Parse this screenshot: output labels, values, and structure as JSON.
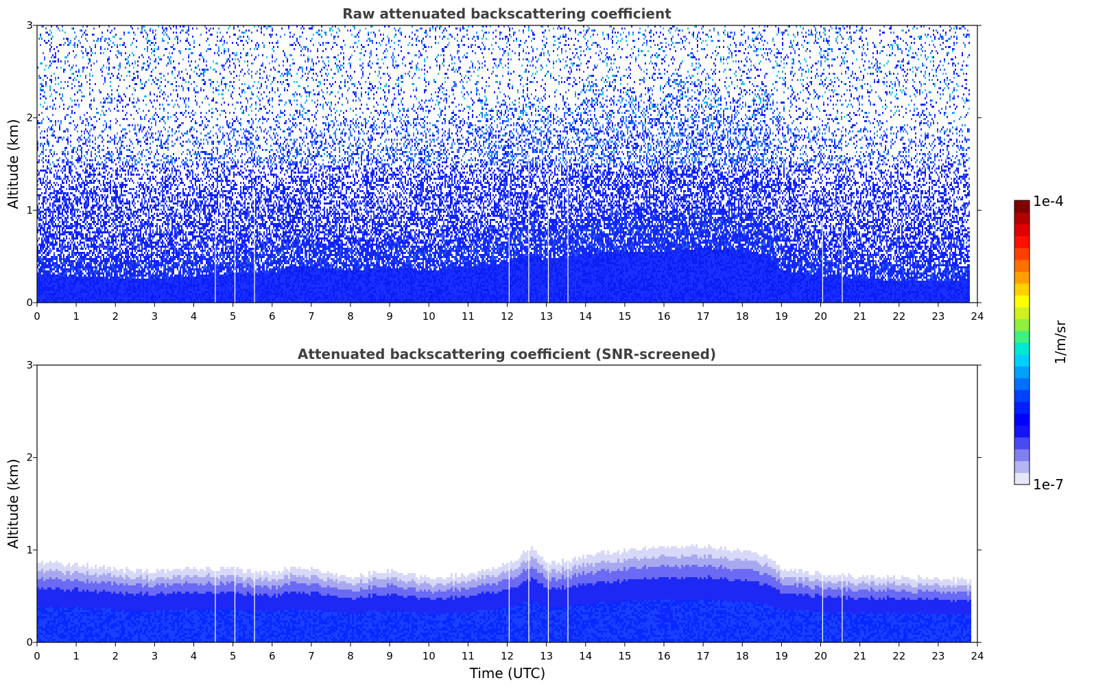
{
  "chart_data": [
    {
      "type": "heatmap",
      "title": "Raw attenuated backscattering coefficient",
      "xlabel": "",
      "ylabel": "Altitude (km)",
      "xlim": [
        0,
        24
      ],
      "ylim": [
        0,
        3
      ],
      "x_ticks": [
        "0",
        "1",
        "2",
        "3",
        "4",
        "5",
        "6",
        "7",
        "8",
        "9",
        "10",
        "11",
        "12",
        "13",
        "14",
        "15",
        "16",
        "17",
        "18",
        "19",
        "20",
        "21",
        "22",
        "23",
        "24"
      ],
      "y_ticks": [
        "0",
        "1",
        "2",
        "3"
      ],
      "data_end_hour": 23.8,
      "boundary_layer_top_km": {
        "hour": [
          0,
          1,
          2,
          3,
          4,
          5,
          6,
          6.5,
          7,
          8,
          9,
          10,
          11,
          12,
          12.6,
          13,
          14,
          15,
          16,
          17,
          18,
          18.6,
          19,
          20,
          21,
          22,
          23,
          23.8
        ],
        "value": [
          0.52,
          0.5,
          0.45,
          0.45,
          0.5,
          0.55,
          0.55,
          0.7,
          0.65,
          0.6,
          0.65,
          0.6,
          0.65,
          0.75,
          0.9,
          0.75,
          0.9,
          0.95,
          0.95,
          1.0,
          0.95,
          0.9,
          0.6,
          0.5,
          0.45,
          0.42,
          0.42,
          0.4
        ]
      },
      "data_gaps_hour": [
        4.55,
        5.05,
        5.55,
        12.05,
        12.55,
        13.05,
        13.55,
        20.05,
        20.55
      ],
      "noisy": true
    },
    {
      "type": "heatmap",
      "title": "Attenuated backscattering coefficient (SNR-screened)",
      "xlabel": "Time (UTC)",
      "ylabel": "Altitude (km)",
      "xlim": [
        0,
        24
      ],
      "ylim": [
        0,
        3
      ],
      "x_ticks": [
        "0",
        "1",
        "2",
        "3",
        "4",
        "5",
        "6",
        "7",
        "8",
        "9",
        "10",
        "11",
        "12",
        "13",
        "14",
        "15",
        "16",
        "17",
        "18",
        "19",
        "20",
        "21",
        "22",
        "23",
        "24"
      ],
      "y_ticks": [
        "0",
        "1",
        "2",
        "3"
      ],
      "data_end_hour": 23.8,
      "boundary_layer_top_km": {
        "hour": [
          0,
          1,
          2,
          3,
          4,
          5,
          6,
          6.5,
          7,
          8,
          9,
          10,
          11,
          12,
          12.6,
          13,
          14,
          15,
          16,
          17,
          18,
          18.6,
          19,
          20,
          21,
          22,
          23,
          23.8
        ],
        "value": [
          0.88,
          0.85,
          0.8,
          0.78,
          0.82,
          0.8,
          0.75,
          0.82,
          0.8,
          0.72,
          0.8,
          0.7,
          0.75,
          0.85,
          1.05,
          0.85,
          0.95,
          1.0,
          1.05,
          1.05,
          1.0,
          0.95,
          0.8,
          0.75,
          0.72,
          0.72,
          0.7,
          0.68
        ]
      },
      "data_gaps_hour": [
        4.55,
        5.05,
        5.55,
        12.05,
        12.55,
        13.05,
        13.55,
        20.05,
        20.55
      ],
      "noisy": false
    }
  ],
  "colorbar": {
    "label": "1/m/sr",
    "max_label": "1e-4",
    "min_label": "1e-7",
    "colors": [
      "#e6e6fa",
      "#b4b4f0",
      "#8080f0",
      "#4a4af5",
      "#1414f5",
      "#0000ff",
      "#0020ff",
      "#0040ff",
      "#0070ff",
      "#00a0ff",
      "#00d0ff",
      "#00e8d0",
      "#40f080",
      "#90f040",
      "#d0f020",
      "#ffff00",
      "#ffd000",
      "#ffa000",
      "#ff7000",
      "#ff4000",
      "#ff1000",
      "#e00000",
      "#b00000",
      "#800000"
    ]
  }
}
